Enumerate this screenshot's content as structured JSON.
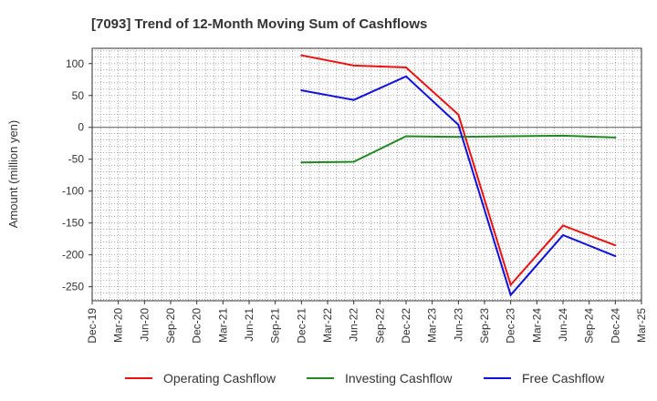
{
  "chart_data": {
    "type": "line",
    "title": "[7093]  Trend of 12-Month Moving Sum of Cashflows",
    "ylabel": "Amount (million yen)",
    "xlabel": "",
    "x_ticks": [
      "Dec-19",
      "Mar-20",
      "Jun-20",
      "Sep-20",
      "Dec-20",
      "Mar-21",
      "Jun-21",
      "Sep-21",
      "Dec-21",
      "Mar-22",
      "Jun-22",
      "Sep-22",
      "Dec-22",
      "Mar-23",
      "Jun-23",
      "Sep-23",
      "Dec-23",
      "Mar-24",
      "Jun-24",
      "Sep-24",
      "Dec-24",
      "Mar-25"
    ],
    "y_ticks": [
      100,
      50,
      0,
      -50,
      -100,
      -150,
      -200,
      -250
    ],
    "ylim": [
      -272,
      124
    ],
    "grid": true,
    "legend_position": "bottom",
    "series": [
      {
        "name": "Operating Cashflow",
        "color": "#ee1111",
        "points": [
          {
            "x": "Dec-21",
            "y": 113
          },
          {
            "x": "Jun-22",
            "y": 97
          },
          {
            "x": "Dec-22",
            "y": 94
          },
          {
            "x": "Jun-23",
            "y": 20
          },
          {
            "x": "Dec-23",
            "y": -247
          },
          {
            "x": "Jun-24",
            "y": -154
          },
          {
            "x": "Dec-24",
            "y": -185
          }
        ]
      },
      {
        "name": "Investing Cashflow",
        "color": "#228822",
        "points": [
          {
            "x": "Dec-21",
            "y": -55
          },
          {
            "x": "Jun-22",
            "y": -54
          },
          {
            "x": "Dec-22",
            "y": -14
          },
          {
            "x": "Jun-23",
            "y": -15
          },
          {
            "x": "Dec-23",
            "y": -14
          },
          {
            "x": "Jun-24",
            "y": -13
          },
          {
            "x": "Dec-24",
            "y": -16
          }
        ]
      },
      {
        "name": "Free Cashflow",
        "color": "#1111dd",
        "points": [
          {
            "x": "Dec-21",
            "y": 58
          },
          {
            "x": "Jun-22",
            "y": 43
          },
          {
            "x": "Dec-22",
            "y": 80
          },
          {
            "x": "Jun-23",
            "y": 4
          },
          {
            "x": "Dec-23",
            "y": -263
          },
          {
            "x": "Jun-24",
            "y": -169
          },
          {
            "x": "Dec-24",
            "y": -202
          }
        ]
      }
    ]
  }
}
